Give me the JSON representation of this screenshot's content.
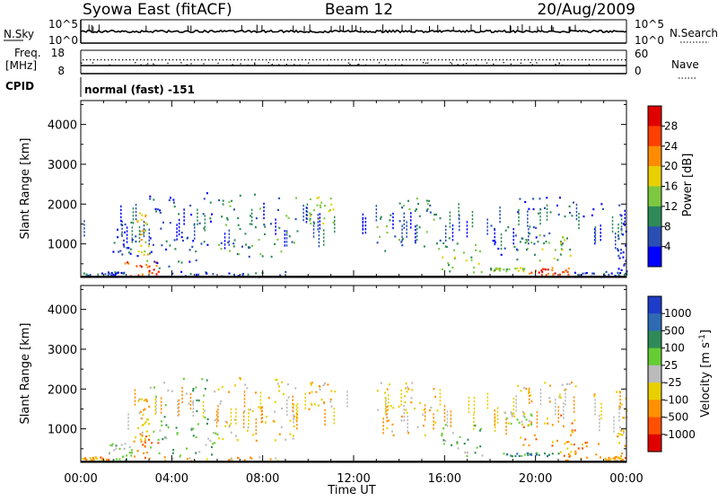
{
  "header": {
    "station": "Syowa East (fitACF)",
    "beam": "Beam 12",
    "date": "20/Aug/2009"
  },
  "strip_panels": {
    "noise": {
      "left_label": "N.Sky",
      "right_label": "N.Search",
      "left_ticks": [
        "10^5",
        "10^0"
      ],
      "right_ticks": [
        "10^5",
        "10^0"
      ]
    },
    "freq": {
      "left_label_1": "Freq.",
      "left_label_2": "[MHz]",
      "right_label": "Nave",
      "left_ticks": [
        "18",
        "8"
      ],
      "right_ticks": [
        "60",
        "0"
      ]
    },
    "cpid": {
      "label": "CPID",
      "text": "normal (fast) -151"
    }
  },
  "chart_data": [
    {
      "type": "heatmap",
      "title": "",
      "ylabel": "Slant Range [km]",
      "xlabel": "Time UT",
      "ylim": [
        180,
        4600
      ],
      "y_ticks": [
        1000,
        2000,
        3000,
        4000
      ],
      "x_ticks": [
        "00:00",
        "04:00",
        "08:00",
        "12:00",
        "16:00",
        "20:00",
        "00:00"
      ],
      "x_hours": [
        0,
        4,
        8,
        12,
        16,
        20,
        24
      ],
      "colorbar": {
        "label": "Power [dB]",
        "ticks": [
          "4",
          "8",
          "12",
          "16",
          "20",
          "24",
          "28"
        ],
        "colors": [
          "#0000ff",
          "#2a4fb4",
          "#2e8b57",
          "#7cc840",
          "#e8d000",
          "#ff8c00",
          "#ff4000",
          "#e00000"
        ]
      },
      "clusters": [
        {
          "t0": 0.0,
          "t1": 1.9,
          "r0": 190,
          "r1": 320,
          "level": 1
        },
        {
          "t0": 1.9,
          "t1": 3.4,
          "r0": 190,
          "r1": 560,
          "level": 6
        },
        {
          "t0": 2.4,
          "t1": 3.0,
          "r0": 560,
          "r1": 1800,
          "level": 4
        },
        {
          "t0": 1.3,
          "t1": 2.5,
          "r0": 700,
          "r1": 1600,
          "level": 1
        },
        {
          "t0": 3.5,
          "t1": 9.0,
          "r0": 190,
          "r1": 320,
          "level": 1
        },
        {
          "t0": 3.0,
          "t1": 5.8,
          "r0": 400,
          "r1": 2300,
          "level": 1
        },
        {
          "t0": 6.0,
          "t1": 9.5,
          "r0": 700,
          "r1": 2300,
          "level": 2
        },
        {
          "t0": 10.0,
          "t1": 11.2,
          "r0": 1500,
          "r1": 2200,
          "level": 3
        },
        {
          "t0": 13.0,
          "t1": 15.8,
          "r0": 800,
          "r1": 2200,
          "level": 2
        },
        {
          "t0": 15.8,
          "t1": 17.8,
          "r0": 300,
          "r1": 1200,
          "level": 3
        },
        {
          "t0": 18.0,
          "t1": 21.2,
          "r0": 600,
          "r1": 1500,
          "level": 1
        },
        {
          "t0": 19.5,
          "t1": 21.5,
          "r0": 600,
          "r1": 1300,
          "level": 3
        },
        {
          "t0": 18.0,
          "t1": 19.5,
          "r0": 330,
          "r1": 420,
          "level": 3
        },
        {
          "t0": 19.7,
          "t1": 21.5,
          "r0": 200,
          "r1": 420,
          "level": 6
        },
        {
          "t0": 21.5,
          "t1": 24.0,
          "r0": 190,
          "r1": 320,
          "level": 1
        },
        {
          "t0": 19.0,
          "t1": 23.0,
          "r0": 1700,
          "r1": 2200,
          "level": 1
        },
        {
          "t0": 23.5,
          "t1": 24.0,
          "r0": 200,
          "r1": 2000,
          "level": 0
        }
      ]
    },
    {
      "type": "heatmap",
      "title": "",
      "ylabel": "Slant Range [km]",
      "xlabel": "Time UT",
      "ylim": [
        180,
        4600
      ],
      "y_ticks": [
        1000,
        2000,
        3000,
        4000
      ],
      "x_ticks": [
        "00:00",
        "04:00",
        "08:00",
        "12:00",
        "16:00",
        "20:00",
        "00:00"
      ],
      "x_hours": [
        0,
        4,
        8,
        12,
        16,
        20,
        24
      ],
      "colorbar": {
        "label": "Velocity [m s-1]",
        "label_main": "Velocity [m s",
        "label_sup": "-1",
        "label_end": "]",
        "ticks": [
          "1000",
          "500",
          "100",
          "25",
          "-25",
          "-100",
          "-500",
          "-1000"
        ],
        "colors": [
          "#1e3cc8",
          "#2e6ab4",
          "#2e8b57",
          "#66cc33",
          "#bbbbbb",
          "#e8d000",
          "#ff9000",
          "#ff5000",
          "#e00000"
        ]
      },
      "clusters": [
        {
          "t0": 0.0,
          "t1": 1.2,
          "r0": 200,
          "r1": 320,
          "level": 6
        },
        {
          "t0": 1.2,
          "t1": 2.3,
          "r0": 200,
          "r1": 700,
          "level": 3
        },
        {
          "t0": 2.3,
          "t1": 3.4,
          "r0": 200,
          "r1": 900,
          "level": 6
        },
        {
          "t0": 2.4,
          "t1": 3.0,
          "r0": 900,
          "r1": 1800,
          "level": 5
        },
        {
          "t0": 3.4,
          "t1": 9.0,
          "r0": 200,
          "r1": 350,
          "level": 5
        },
        {
          "t0": 3.0,
          "t1": 6.0,
          "r0": 350,
          "r1": 2300,
          "level": 3
        },
        {
          "t0": 6.0,
          "t1": 9.5,
          "r0": 700,
          "r1": 2300,
          "level": 5
        },
        {
          "t0": 10.0,
          "t1": 11.2,
          "r0": 1500,
          "r1": 2200,
          "level": 5
        },
        {
          "t0": 13.0,
          "t1": 15.8,
          "r0": 800,
          "r1": 2200,
          "level": 5
        },
        {
          "t0": 15.8,
          "t1": 18.0,
          "r0": 300,
          "r1": 1200,
          "level": 3
        },
        {
          "t0": 18.6,
          "t1": 19.8,
          "r0": 1100,
          "r1": 1450,
          "level": 4
        },
        {
          "t0": 19.0,
          "t1": 22.0,
          "r0": 600,
          "r1": 1400,
          "level": 6
        },
        {
          "t0": 18.5,
          "t1": 21.0,
          "r0": 330,
          "r1": 420,
          "level": 2
        },
        {
          "t0": 21.0,
          "t1": 22.8,
          "r0": 200,
          "r1": 700,
          "level": 6
        },
        {
          "t0": 22.8,
          "t1": 24.0,
          "r0": 200,
          "r1": 320,
          "level": 6
        },
        {
          "t0": 19.0,
          "t1": 23.0,
          "r0": 1700,
          "r1": 2200,
          "level": 5
        },
        {
          "t0": 23.5,
          "t1": 24.0,
          "r0": 200,
          "r1": 2000,
          "level": 5
        }
      ]
    }
  ]
}
